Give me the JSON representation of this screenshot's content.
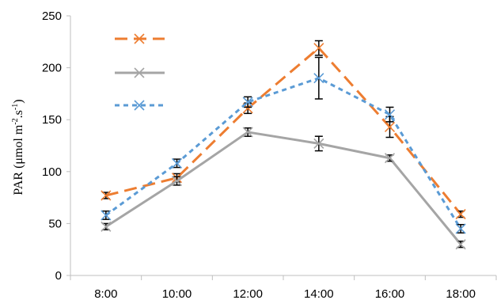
{
  "chart_data": {
    "type": "line",
    "title": "",
    "xlabel": "",
    "ylabel": {
      "prefix": "PAR (μmol m",
      "sup1": "-2",
      "mid": ".s",
      "sup2": "-1",
      "suffix": ")"
    },
    "categories": [
      "8:00",
      "10:00",
      "12:00",
      "14:00",
      "16:00",
      "18:00"
    ],
    "ylim": [
      0,
      250
    ],
    "yticks": [
      "0",
      "50",
      "100",
      "150",
      "200",
      "250"
    ],
    "grid": false,
    "legend_position": "top-left",
    "series": [
      {
        "color": "#ED7D31",
        "dash": "long-dash",
        "marker": "x",
        "values": [
          77,
          94,
          161,
          219,
          143,
          59
        ],
        "errors": [
          3,
          4,
          5,
          7,
          10,
          3
        ]
      },
      {
        "color": "#A5A5A5",
        "dash": "solid",
        "marker": "x",
        "values": [
          47,
          91,
          138,
          127,
          113,
          30
        ],
        "errors": [
          3,
          4,
          4,
          7,
          3,
          3
        ]
      },
      {
        "color": "#5B9BD5",
        "dash": "short-dash",
        "marker": "x",
        "values": [
          58,
          108,
          167,
          190,
          155,
          45
        ],
        "errors": [
          4,
          4,
          5,
          20,
          7,
          4
        ]
      }
    ]
  }
}
